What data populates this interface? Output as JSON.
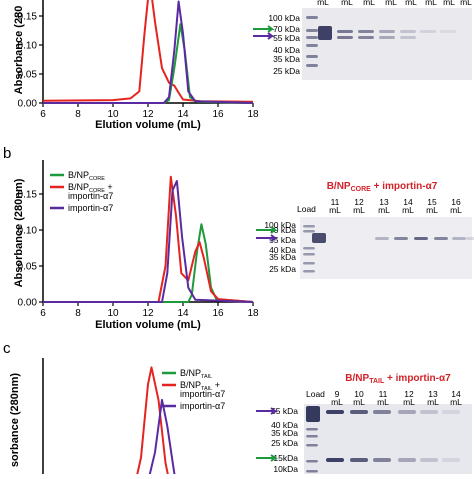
{
  "colors": {
    "green": "#1e9a3c",
    "red": "#e52420",
    "purple": "#5a2aa0",
    "gel_title": "#d2232a"
  },
  "chart_data": [
    {
      "panel": "a",
      "type": "line",
      "xlabel": "Elution volume (mL)",
      "ylabel": "Absorbance (280nm)",
      "ylabel_visible": "Absorbance (280",
      "xlim": [
        6,
        18
      ],
      "ylim": [
        0,
        0.2
      ],
      "x_ticks": [
        "6",
        "8",
        "10",
        "12",
        "14",
        "16",
        "18"
      ],
      "y_ticks": [
        "0.00",
        "0.05",
        "0.10",
        "0.15"
      ],
      "series": [
        {
          "color": "red",
          "points": [
            [
              6,
              0.004
            ],
            [
              10,
              0.005
            ],
            [
              11,
              0.008
            ],
            [
              11.5,
              0.02
            ],
            [
              11.8,
              0.12
            ],
            [
              12.1,
              0.21
            ],
            [
              12.4,
              0.14
            ],
            [
              12.8,
              0.06
            ],
            [
              13.2,
              0.035
            ],
            [
              13.5,
              0.03
            ],
            [
              13.7,
              0.02
            ],
            [
              14,
              0.006
            ],
            [
              15,
              0.003
            ],
            [
              18,
              0.002
            ]
          ]
        },
        {
          "color": "green",
          "points": [
            [
              6,
              0
            ],
            [
              12.9,
              0
            ],
            [
              13.2,
              0.005
            ],
            [
              13.5,
              0.06
            ],
            [
              13.85,
              0.136
            ],
            [
              14.1,
              0.09
            ],
            [
              14.4,
              0.01
            ],
            [
              14.8,
              0.002
            ],
            [
              18,
              0
            ]
          ]
        },
        {
          "color": "purple",
          "points": [
            [
              6,
              0
            ],
            [
              12.9,
              0
            ],
            [
              13.2,
              0.01
            ],
            [
              13.5,
              0.09
            ],
            [
              13.75,
              0.175
            ],
            [
              14.0,
              0.12
            ],
            [
              14.3,
              0.02
            ],
            [
              14.7,
              0.003
            ],
            [
              18,
              0
            ]
          ]
        }
      ]
    },
    {
      "panel": "b",
      "type": "line",
      "xlabel": "Elution volume (mL)",
      "ylabel": "Absorbance (280nm)",
      "xlim": [
        6,
        18
      ],
      "ylim": [
        0,
        0.2
      ],
      "x_ticks": [
        "6",
        "8",
        "10",
        "12",
        "14",
        "16",
        "18"
      ],
      "y_ticks": [
        "0.00",
        "0.05",
        "0.10",
        "0.15"
      ],
      "legend": [
        {
          "color": "green",
          "main": "B/NP",
          "sub": "CORE",
          "rest": ""
        },
        {
          "color": "red",
          "main": "B/NP",
          "sub": "CORE",
          "rest": " +",
          "line2": "importin-α7"
        },
        {
          "color": "purple",
          "main": "importin-α7",
          "sub": "",
          "rest": ""
        }
      ],
      "series": [
        {
          "color": "green",
          "points": [
            [
              6,
              0
            ],
            [
              14.3,
              0
            ],
            [
              14.5,
              0.01
            ],
            [
              14.8,
              0.07
            ],
            [
              15.05,
              0.108
            ],
            [
              15.3,
              0.08
            ],
            [
              15.6,
              0.02
            ],
            [
              15.9,
              0.004
            ],
            [
              18,
              0
            ]
          ]
        },
        {
          "color": "red",
          "points": [
            [
              6,
              0
            ],
            [
              12.6,
              0
            ],
            [
              13.0,
              0.05
            ],
            [
              13.3,
              0.174
            ],
            [
              13.6,
              0.12
            ],
            [
              13.9,
              0.04
            ],
            [
              14.3,
              0.03
            ],
            [
              14.7,
              0.07
            ],
            [
              14.95,
              0.083
            ],
            [
              15.2,
              0.06
            ],
            [
              15.6,
              0.015
            ],
            [
              16,
              0.004
            ],
            [
              18,
              0
            ]
          ]
        },
        {
          "color": "purple",
          "points": [
            [
              6,
              0
            ],
            [
              12.8,
              0
            ],
            [
              13.1,
              0.04
            ],
            [
              13.4,
              0.155
            ],
            [
              13.65,
              0.168
            ],
            [
              13.95,
              0.09
            ],
            [
              14.3,
              0.02
            ],
            [
              14.7,
              0.003
            ],
            [
              18,
              0
            ]
          ]
        }
      ]
    },
    {
      "panel": "c",
      "type": "line",
      "ylabel_visible": "sorbance (280nm)",
      "xlim": [
        6,
        18
      ],
      "ylim": [
        0,
        0.25
      ],
      "legend": [
        {
          "color": "green",
          "main": "B/NP",
          "sub": "TAIL",
          "rest": ""
        },
        {
          "color": "red",
          "main": "B/NP",
          "sub": "TAIL",
          "rest": " +",
          "line2": "importin-α7"
        },
        {
          "color": "purple",
          "main": "importin-α7",
          "sub": "",
          "rest": ""
        }
      ],
      "series": [
        {
          "color": "red",
          "points": [
            [
              11.2,
              0
            ],
            [
              11.6,
              0.06
            ],
            [
              12.0,
              0.2
            ],
            [
              12.2,
              0.232
            ],
            [
              12.6,
              0.17
            ],
            [
              13.0,
              0.05
            ],
            [
              13.3,
              0
            ]
          ]
        },
        {
          "color": "purple",
          "points": [
            [
              11.9,
              0
            ],
            [
              12.4,
              0.07
            ],
            [
              12.8,
              0.17
            ],
            [
              13.1,
              0.12
            ],
            [
              13.5,
              0.03
            ],
            [
              13.8,
              0
            ]
          ]
        },
        {
          "color": "green",
          "points": [
            [
              14.6,
              0
            ],
            [
              15.0,
              0.012
            ],
            [
              15.2,
              0
            ]
          ]
        }
      ]
    }
  ],
  "gels": [
    {
      "panel": "a",
      "title": "",
      "markers": [
        "100 kDa",
        "70 kDa",
        "55 kDa",
        "40 kDa",
        "35 kDa",
        "25 kDa"
      ],
      "lanes": [
        "mL",
        "mL",
        "mL",
        "mL",
        "mL",
        "mL",
        "mL",
        "mL"
      ]
    },
    {
      "panel": "b",
      "title_main": "B/NP",
      "title_sub": "CORE",
      "title_rest": " + importin-α7",
      "markers": [
        "100 kDa",
        "70 kDa",
        "55 kDa",
        "40 kDa",
        "35 kDa",
        "25 kDa"
      ],
      "load": "Load",
      "lanes": [
        [
          "11",
          "mL"
        ],
        [
          "12",
          "mL"
        ],
        [
          "13",
          "mL"
        ],
        [
          "14",
          "mL"
        ],
        [
          "15",
          "mL"
        ],
        [
          "16",
          "mL"
        ]
      ]
    },
    {
      "panel": "c",
      "title_main": "B/NP",
      "title_sub": "TAIL",
      "title_rest": " + importin-α7",
      "markers": [
        "55 kDa",
        "40 kDa",
        "35 kDa",
        "25 kDa",
        "15kDa",
        "10kDa"
      ],
      "load": "Load",
      "lanes": [
        [
          "9",
          "mL"
        ],
        [
          "10",
          "mL"
        ],
        [
          "11",
          "mL"
        ],
        [
          "12",
          "mL"
        ],
        [
          "13",
          "mL"
        ],
        [
          "14",
          "mL"
        ]
      ]
    }
  ],
  "labels": {
    "b": "b",
    "c": "c"
  }
}
